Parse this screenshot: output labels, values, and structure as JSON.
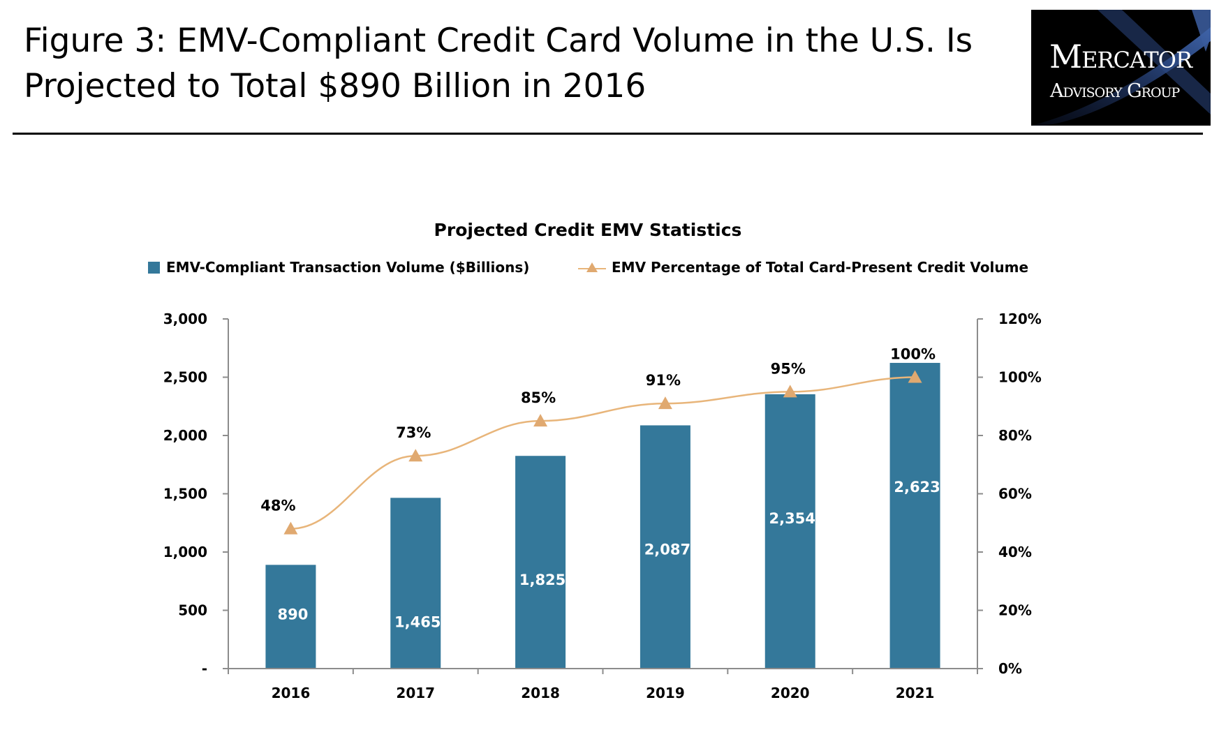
{
  "header": {
    "title_line1": "Figure 3: EMV-Compliant Credit Card Volume in the U.S. Is",
    "title_line2": "Projected to Total $890 Billion in 2016"
  },
  "logo": {
    "line1": "Mercator",
    "line2": "Advisory Group"
  },
  "colors": {
    "bar": "#34789a",
    "line": "#e8b57a",
    "marker": "#e0a970",
    "axis": "#8c8c8c"
  },
  "chart_data": {
    "type": "bar",
    "title": "Projected Credit EMV Statistics",
    "categories": [
      "2016",
      "2017",
      "2018",
      "2019",
      "2020",
      "2021"
    ],
    "series": [
      {
        "name": "EMV-Compliant Transaction Volume ($Billions)",
        "type": "bar",
        "axis": "left",
        "values": [
          890,
          1465,
          1825,
          2087,
          2354,
          2623
        ],
        "data_labels": [
          "890",
          "1,465",
          "1,825",
          "2,087",
          "2,354",
          "2,623"
        ]
      },
      {
        "name": "EMV Percentage of Total Card-Present Credit Volume",
        "type": "line",
        "marker": "triangle",
        "axis": "right",
        "values": [
          48,
          73,
          85,
          91,
          95,
          100
        ],
        "data_labels": [
          "48%",
          "73%",
          "85%",
          "91%",
          "95%",
          "100%"
        ]
      }
    ],
    "y_left": {
      "lim": [
        0,
        3000
      ],
      "tick_labels": [
        "-",
        "500",
        "1,000",
        "1,500",
        "2,000",
        "2,500",
        "3,000"
      ]
    },
    "y_right": {
      "lim": [
        0,
        120
      ],
      "tick_labels": [
        "0%",
        "20%",
        "40%",
        "60%",
        "80%",
        "100%",
        "120%"
      ]
    },
    "legend_position": "top",
    "grid": false
  }
}
